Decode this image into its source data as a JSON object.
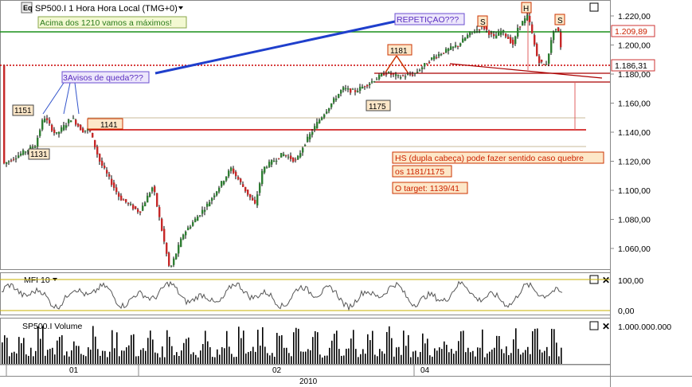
{
  "header": {
    "logo": "Eq",
    "title": "SP500.I 1 Hora Hora Local (TMG+0)",
    "dropdown_icon": "chevron-down-icon"
  },
  "annotations": {
    "green_note": "Acima dos 1210 vamos a máximos!",
    "repetition": "REPETIÇAO???",
    "warnings": "3Avisos de queda???",
    "label_1151": "1151",
    "label_1131": "1131",
    "label_1141": "1141",
    "label_1181": "1181",
    "label_1175": "1175",
    "head_marker": "H",
    "shoulder_left": "S",
    "shoulder_right": "S",
    "hs_line1": "HS (dupla cabeça) pode fazer sentido caso quebre",
    "hs_line2": "os 1181/1175",
    "hs_line3": "O target: 1139/41"
  },
  "price_axis": {
    "current_price_tag": "1.186,31",
    "level_tag": "1.209,89",
    "ticks": [
      "1.220,00",
      "1.200,00",
      "1.180,00",
      "1.160,00",
      "1.140,00",
      "1.120,00",
      "1.100,00",
      "1.080,00",
      "1.060,00"
    ]
  },
  "mfi_panel": {
    "title": "MFI 10",
    "ticks": [
      "100,00",
      "0,00"
    ]
  },
  "volume_panel": {
    "title": "SP500.I Volume",
    "ticks": [
      "1.000.000.000"
    ]
  },
  "time_axis": {
    "months": [
      "01",
      "02",
      "04"
    ],
    "year": "2010"
  },
  "colors": {
    "up": "#2e7d32",
    "down": "#c62828",
    "wick": "#000000",
    "green_level": "#1a8f1a",
    "red_level": "#cc0000",
    "blue_line": "#1f3fcc",
    "note_fill": "#fde7c8"
  },
  "chart_data": {
    "type": "candlestick",
    "title": "SP500.I 1 Hora Hora Local (TMG+0)",
    "y_range": [
      1045,
      1228
    ],
    "key_points": {
      "x": [
        "start",
        "1151 high",
        "1131 low",
        "1141",
        "feb low",
        "march",
        "1175",
        "1181",
        "left S",
        "H",
        "right S",
        "last"
      ],
      "y": [
        1118,
        1151,
        1131,
        1141,
        1045,
        1120,
        1175,
        1181,
        1213,
        1220,
        1210,
        1186.31
      ]
    },
    "levels": [
      1209.89,
      1186.31,
      1181,
      1175,
      1151,
      1141,
      1131
    ],
    "mfi_range": [
      0,
      100
    ],
    "volume_tick": 1000000000
  }
}
